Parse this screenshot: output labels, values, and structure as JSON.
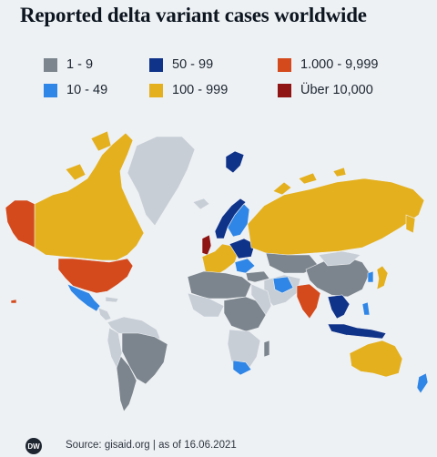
{
  "title": "Reported delta variant cases worldwide",
  "legend": [
    {
      "label": "1 - 9",
      "color": "#7c858d"
    },
    {
      "label": "50 - 99",
      "color": "#10338a"
    },
    {
      "label": "1.000 - 9,999",
      "color": "#d44a1c"
    },
    {
      "label": "10 - 49",
      "color": "#2f86e6"
    },
    {
      "label": "100 - 999",
      "color": "#e4b01e"
    },
    {
      "label": "Über 10,000",
      "color": "#8f1414"
    }
  ],
  "colors": {
    "background": "#eef1f4",
    "no_data": "#c7ced6",
    "category_1_9": "#7c858d",
    "category_10_49": "#2f86e6",
    "category_50_99": "#10338a",
    "category_100_999": "#e4b01e",
    "category_1000_9999": "#d44a1c",
    "category_over_10000": "#8f1414"
  },
  "footer": {
    "logo": "DW",
    "source": "Source: gisaid.org | as of 16.06.2021"
  }
}
